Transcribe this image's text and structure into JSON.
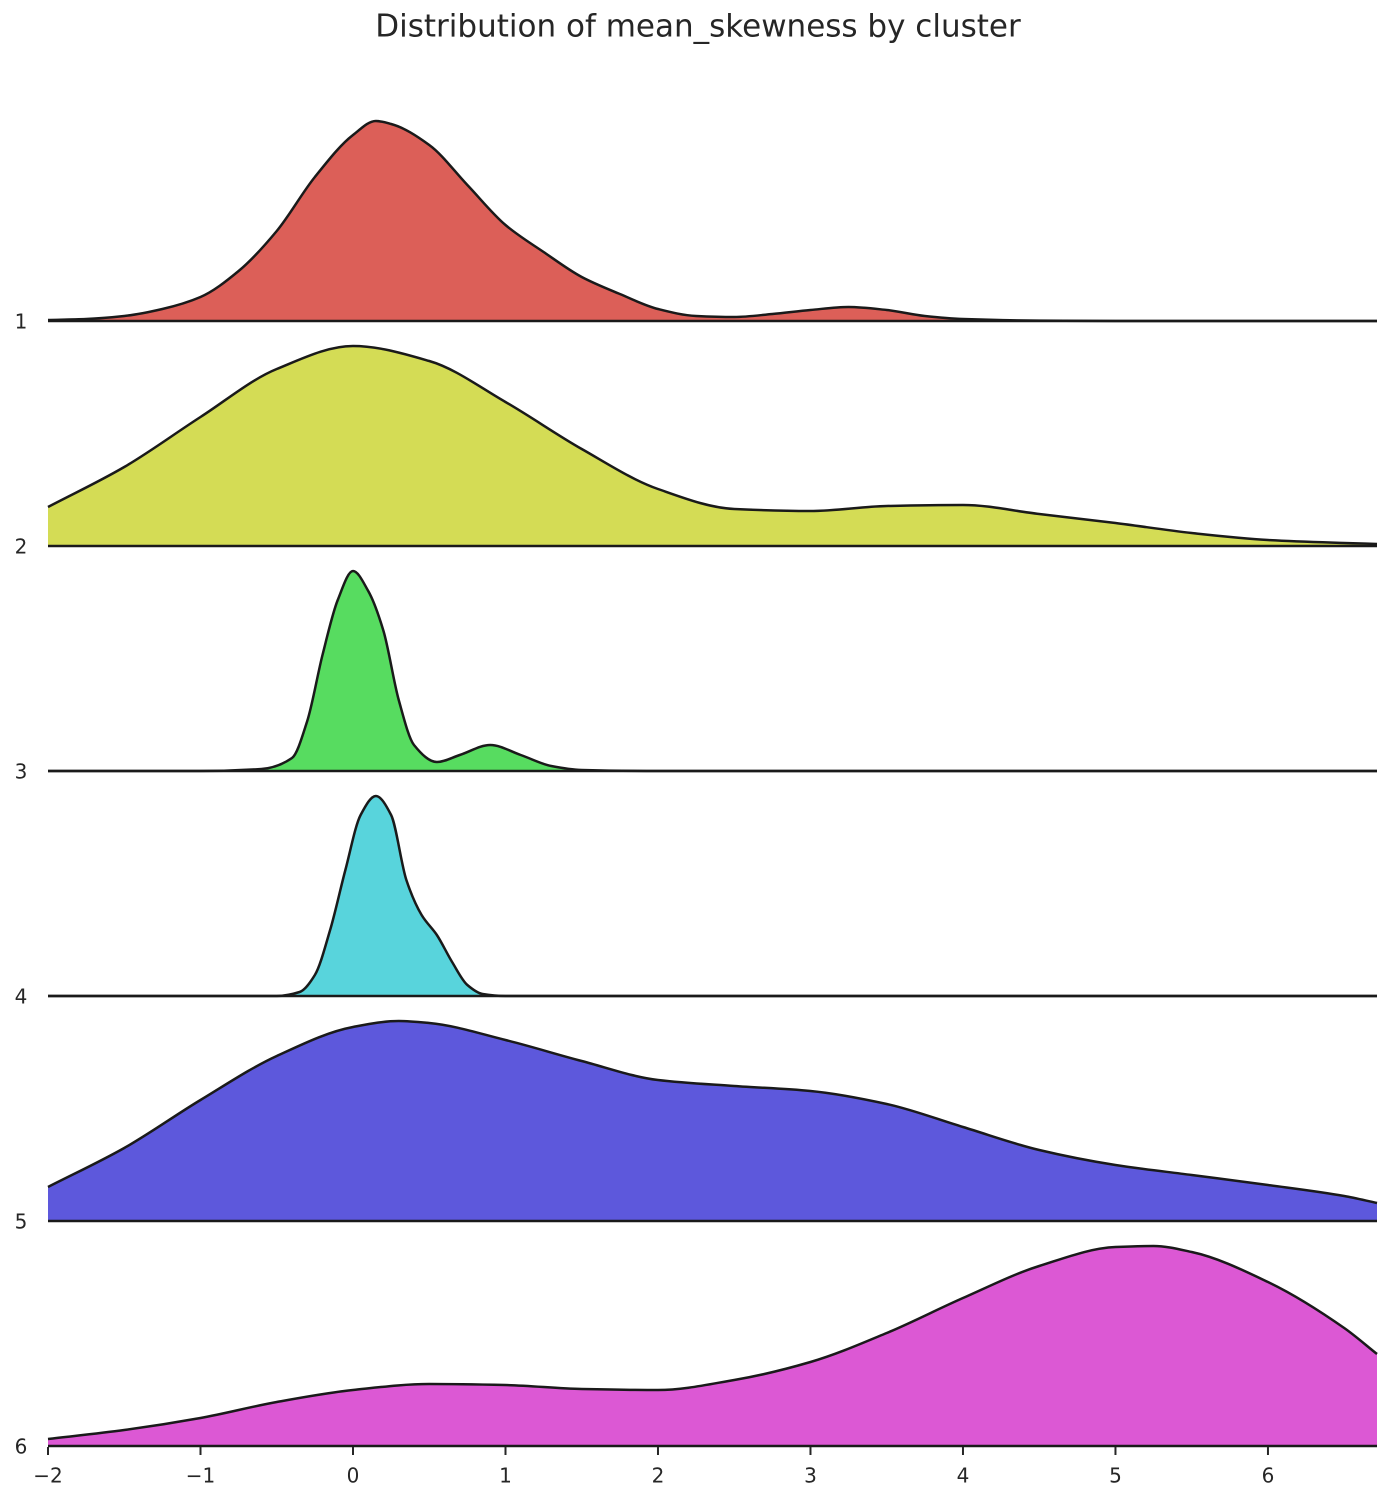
{
  "chart_data": {
    "type": "ridgeline",
    "title": "Distribution of mean_skewness by cluster",
    "xlim": [
      -2,
      6.715
    ],
    "xticks": [
      {
        "value": -2,
        "label": "−2"
      },
      {
        "value": -1,
        "label": "−1"
      },
      0,
      1,
      2,
      3,
      4,
      5,
      6
    ],
    "ylim": [
      0,
      1
    ],
    "series": [
      {
        "name": "1",
        "color": "#dc5f58",
        "x": [
          -2,
          -1.75,
          -1.5,
          -1.25,
          -1,
          -0.75,
          -0.5,
          -0.25,
          0,
          0.15,
          0.25,
          0.5,
          0.75,
          1,
          1.25,
          1.5,
          1.75,
          2,
          2.25,
          2.5,
          2.75,
          3,
          3.25,
          3.5,
          3.75,
          4,
          4.5,
          5,
          6,
          6.715
        ],
        "values": [
          0.005,
          0.01,
          0.025,
          0.06,
          0.12,
          0.25,
          0.45,
          0.72,
          0.93,
          1.0,
          0.985,
          0.88,
          0.68,
          0.48,
          0.345,
          0.22,
          0.135,
          0.06,
          0.025,
          0.02,
          0.035,
          0.055,
          0.07,
          0.055,
          0.025,
          0.01,
          0.002,
          0,
          0,
          0
        ]
      },
      {
        "name": "2",
        "color": "#d4dc55",
        "x": [
          -2,
          -1.5,
          -1,
          -0.5,
          0,
          0.5,
          1,
          1.5,
          2,
          2.5,
          3,
          3.5,
          4,
          4.5,
          5,
          5.5,
          6,
          6.5,
          6.715
        ],
        "values": [
          0.195,
          0.395,
          0.645,
          0.885,
          1.0,
          0.925,
          0.72,
          0.485,
          0.285,
          0.185,
          0.175,
          0.2,
          0.205,
          0.16,
          0.115,
          0.065,
          0.03,
          0.015,
          0.01
        ]
      },
      {
        "name": "3",
        "color": "#57dc60",
        "x": [
          -2,
          -1,
          -0.6,
          -0.4,
          -0.3,
          -0.2,
          -0.1,
          0,
          0.1,
          0.2,
          0.3,
          0.4,
          0.55,
          0.7,
          0.9,
          1.1,
          1.3,
          1.5,
          2,
          6.715
        ],
        "values": [
          0,
          0,
          0.01,
          0.065,
          0.25,
          0.58,
          0.855,
          1.0,
          0.9,
          0.7,
          0.355,
          0.13,
          0.045,
          0.08,
          0.13,
          0.08,
          0.025,
          0.005,
          0,
          0
        ]
      },
      {
        "name": "4",
        "color": "#58d4dc",
        "x": [
          -2,
          -0.5,
          -0.35,
          -0.25,
          -0.15,
          -0.05,
          0.05,
          0.15,
          0.25,
          0.35,
          0.45,
          0.55,
          0.65,
          0.75,
          0.85,
          1,
          6.715
        ],
        "values": [
          0,
          0,
          0.02,
          0.105,
          0.33,
          0.63,
          0.905,
          1.0,
          0.905,
          0.58,
          0.405,
          0.305,
          0.17,
          0.055,
          0.01,
          0,
          0
        ]
      },
      {
        "name": "5",
        "color": "#5d58dc",
        "x": [
          -2,
          -1.5,
          -1,
          -0.5,
          0,
          0.3,
          0.5,
          1,
          1.5,
          2,
          2.5,
          3,
          3.5,
          4,
          4.5,
          5,
          5.5,
          6,
          6.5,
          6.715
        ],
        "values": [
          0.17,
          0.365,
          0.605,
          0.825,
          0.97,
          1.0,
          0.99,
          0.905,
          0.8,
          0.705,
          0.675,
          0.65,
          0.585,
          0.47,
          0.355,
          0.28,
          0.23,
          0.18,
          0.125,
          0.09
        ]
      },
      {
        "name": "6",
        "color": "#dc58d4",
        "x": [
          -2,
          -1.5,
          -1,
          -0.5,
          0,
          0.5,
          1,
          1.5,
          2,
          2.5,
          3,
          3.5,
          4,
          4.5,
          5,
          5.25,
          5.5,
          6,
          6.5,
          6.715
        ],
        "values": [
          0.035,
          0.08,
          0.14,
          0.22,
          0.28,
          0.31,
          0.305,
          0.285,
          0.28,
          0.33,
          0.42,
          0.565,
          0.74,
          0.9,
          0.995,
          1.0,
          0.97,
          0.82,
          0.59,
          0.46
        ]
      }
    ]
  }
}
